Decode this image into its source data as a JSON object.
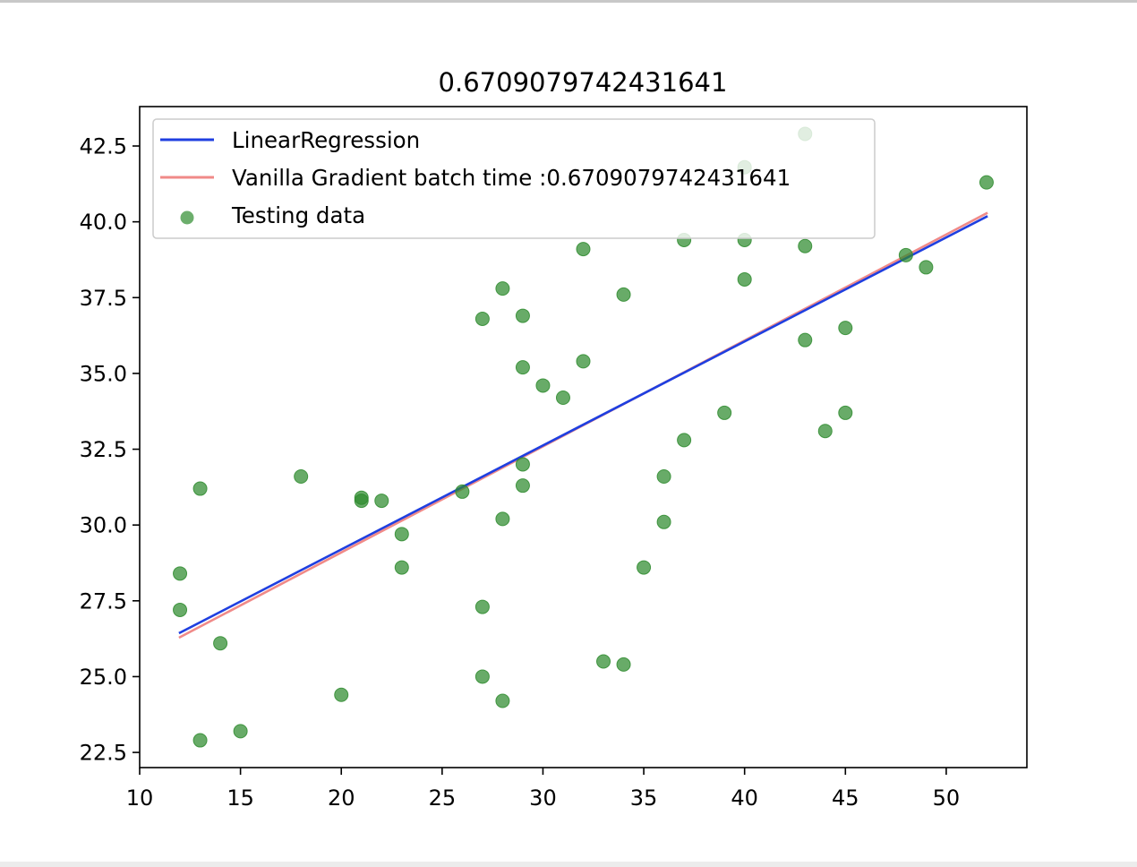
{
  "chart_data": {
    "type": "scatter",
    "title": "0.6709079742431641",
    "xlabel": "",
    "ylabel": "",
    "xlim": [
      10,
      54
    ],
    "ylim": [
      22,
      43.8
    ],
    "x_ticks": [
      10,
      15,
      20,
      25,
      30,
      35,
      40,
      45,
      50
    ],
    "x_tick_labels": [
      "10",
      "15",
      "20",
      "25",
      "30",
      "35",
      "40",
      "45",
      "50"
    ],
    "y_ticks": [
      22.5,
      25.0,
      27.5,
      30.0,
      32.5,
      35.0,
      37.5,
      40.0,
      42.5
    ],
    "y_tick_labels": [
      "22.5",
      "25.0",
      "27.5",
      "30.0",
      "32.5",
      "35.0",
      "37.5",
      "40.0",
      "42.5"
    ],
    "grid": false,
    "legend_position": "upper-left",
    "series": [
      {
        "name": "LinearRegression",
        "kind": "line",
        "color": "#1f3fe0",
        "x": [
          12,
          52
        ],
        "y": [
          26.45,
          40.17
        ]
      },
      {
        "name": "Vanilla Gradient batch time :0.6709079742431641",
        "kind": "line",
        "color": "#f08a88",
        "x": [
          12,
          52
        ],
        "y": [
          26.3,
          40.28
        ]
      },
      {
        "name": "Testing data",
        "kind": "scatter",
        "color": "#2e8b2e",
        "points": [
          [
            12,
            28.4
          ],
          [
            12,
            27.2
          ],
          [
            13,
            31.2
          ],
          [
            13,
            22.9
          ],
          [
            14,
            26.1
          ],
          [
            15,
            23.2
          ],
          [
            18,
            31.6
          ],
          [
            20,
            24.4
          ],
          [
            21,
            30.9
          ],
          [
            21,
            30.8
          ],
          [
            22,
            30.8
          ],
          [
            23,
            29.7
          ],
          [
            23,
            28.6
          ],
          [
            26,
            31.1
          ],
          [
            27,
            36.8
          ],
          [
            27,
            27.3
          ],
          [
            27,
            25.0
          ],
          [
            28,
            37.8
          ],
          [
            28,
            30.2
          ],
          [
            28,
            24.2
          ],
          [
            29,
            36.9
          ],
          [
            29,
            35.2
          ],
          [
            29,
            32.0
          ],
          [
            29,
            31.3
          ],
          [
            30,
            34.6
          ],
          [
            31,
            34.2
          ],
          [
            32,
            39.1
          ],
          [
            32,
            35.4
          ],
          [
            33,
            25.5
          ],
          [
            34,
            37.6
          ],
          [
            34,
            25.4
          ],
          [
            35,
            28.6
          ],
          [
            36,
            31.6
          ],
          [
            36,
            30.1
          ],
          [
            37,
            39.4
          ],
          [
            37,
            32.8
          ],
          [
            39,
            33.7
          ],
          [
            40,
            41.8
          ],
          [
            40,
            39.4
          ],
          [
            40,
            38.1
          ],
          [
            43,
            42.9
          ],
          [
            43,
            39.2
          ],
          [
            43,
            36.1
          ],
          [
            44,
            33.1
          ],
          [
            45,
            36.5
          ],
          [
            45,
            33.7
          ],
          [
            48,
            38.9
          ],
          [
            49,
            38.5
          ],
          [
            52,
            41.3
          ]
        ]
      }
    ]
  }
}
